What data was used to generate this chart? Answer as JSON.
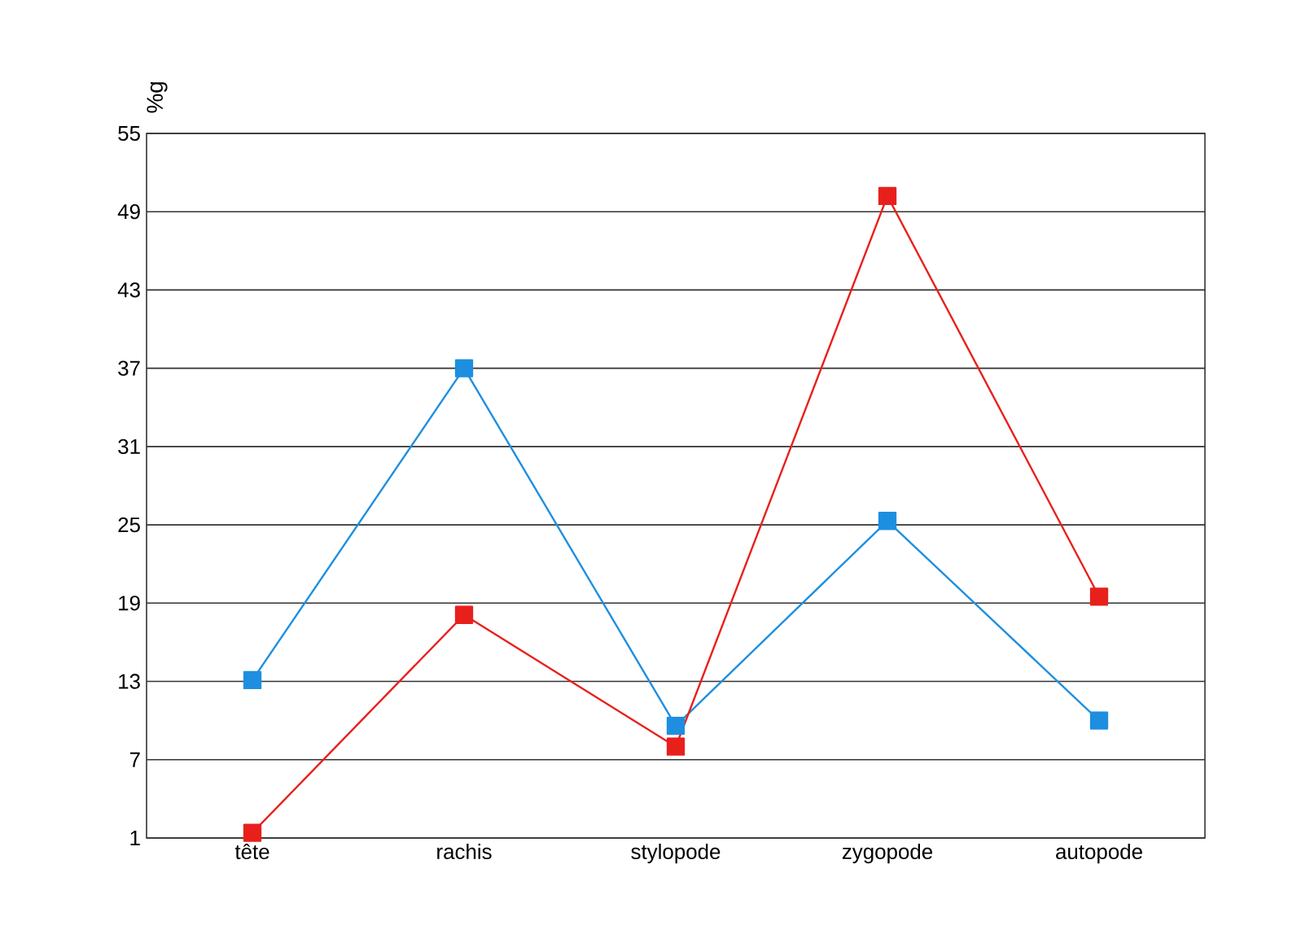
{
  "chart_data": {
    "type": "line",
    "ylabel": "%g",
    "categories": [
      "tête",
      "rachis",
      "stylopode",
      "zygopode",
      "autopode"
    ],
    "series": [
      {
        "color": "#1e8fe0",
        "values": [
          13.1,
          37,
          9.6,
          25.3,
          10
        ]
      },
      {
        "color": "#e8201c",
        "values": [
          1.4,
          18.1,
          8,
          50.2,
          19.5
        ]
      }
    ],
    "ylim": [
      1,
      55
    ],
    "yticks": [
      1,
      7,
      13,
      19,
      25,
      31,
      37,
      43,
      49,
      55
    ],
    "grid": "y",
    "marker": "square",
    "line_style": "solid"
  }
}
